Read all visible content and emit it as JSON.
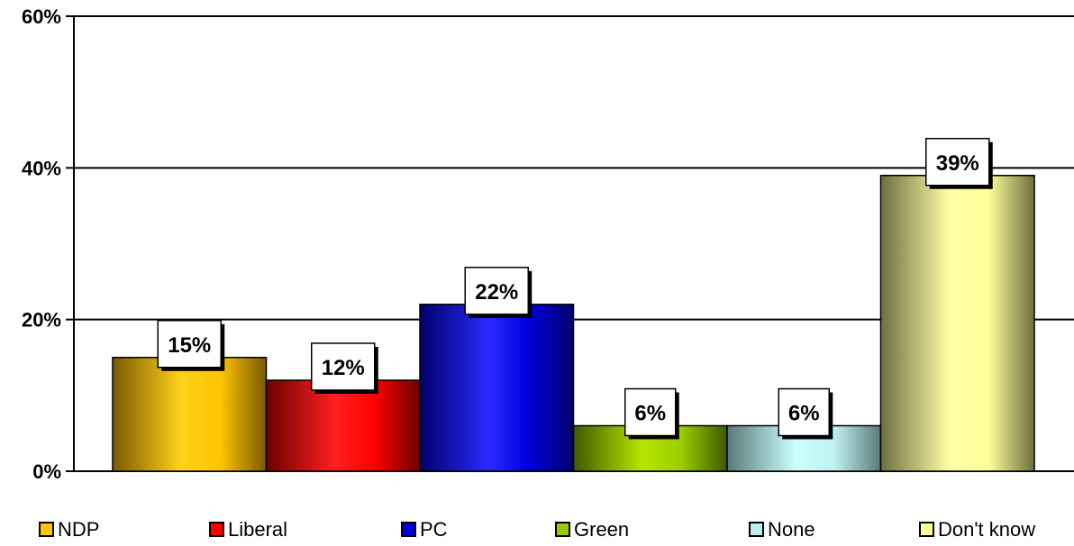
{
  "chart_data": {
    "type": "bar",
    "categories": [
      "NDP",
      "Liberal",
      "PC",
      "Green",
      "None",
      "Don't know"
    ],
    "values": [
      15,
      12,
      22,
      6,
      6,
      39
    ],
    "data_labels": [
      "15%",
      "12%",
      "22%",
      "6%",
      "6%",
      "39%"
    ],
    "title": "",
    "xlabel": "",
    "ylabel": "",
    "ylim": [
      0,
      60
    ],
    "yticks": [
      0,
      20,
      40,
      60
    ],
    "ytick_labels": [
      "0%",
      "20%",
      "40%",
      "60%"
    ],
    "grid": true,
    "legend": {
      "position": "bottom",
      "entries": [
        "NDP",
        "Liberal",
        "PC",
        "Green",
        "None",
        "Don't know"
      ]
    },
    "colors": [
      {
        "dark": "#7a5a00",
        "light": "#ffd21a",
        "mid": "#ffc400"
      },
      {
        "dark": "#6e0000",
        "light": "#ff2020",
        "mid": "#ff0000"
      },
      {
        "dark": "#00006a",
        "light": "#2a2aff",
        "mid": "#0000dd"
      },
      {
        "dark": "#3e5a00",
        "light": "#b8e600",
        "mid": "#9acd00"
      },
      {
        "dark": "#5a7a7a",
        "light": "#ccffff",
        "mid": "#bfeff0"
      },
      {
        "dark": "#6e6e40",
        "light": "#ffffa8",
        "mid": "#ffff99"
      }
    ]
  }
}
